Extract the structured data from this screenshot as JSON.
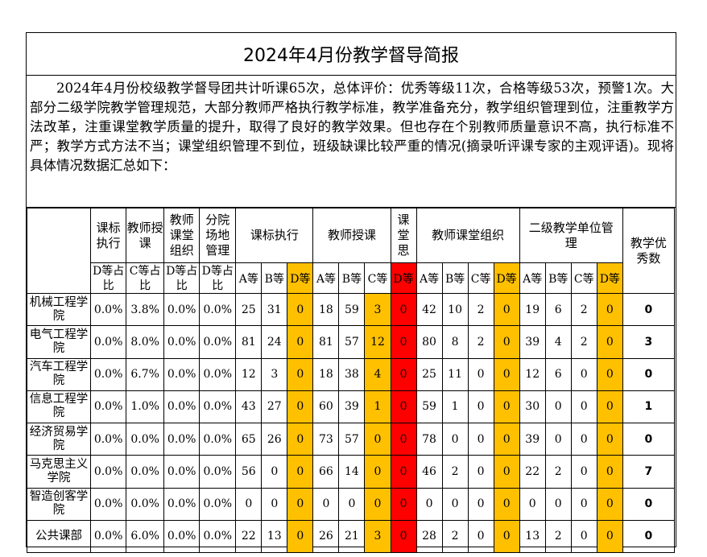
{
  "report": {
    "title": "2024年4月份教学督导简报",
    "summary": "2024年4月份校级教学督导团共计听课65次，总体评价：优秀等级11次，合格等级53次，预警1次。大部分二级学院教学管理规范，大部分教师严格执行教学标准，教学准备充分，教学组织管理到位，注重教学方法改革，注重课堂教学质量的提升，取得了良好的教学效果。但也存在个别教师质量意识不高，执行标准不严；教学方式方法不当；课堂组织管理不到位，班级缺课比较严重的情况(摘录听评课专家的主观评语)。现将具体情况数据汇总如下："
  },
  "table": {
    "header1": {
      "c1": "课标执行",
      "c2": "教师授课",
      "c3": "教师课堂组织",
      "c4": "分院场地管理",
      "g1": "课标执行",
      "g2": "教师授课",
      "g3": "课堂思",
      "g4": "教师课堂组织",
      "g5": "二级教学单位管理",
      "excellent": "教学优秀数"
    },
    "header2": {
      "c1": "D等占比",
      "c2": "C等占比",
      "c3": "D等占比",
      "c4": "D等占比",
      "grades": [
        "A等",
        "B等",
        "D等",
        "A等",
        "B等",
        "C等",
        "D等",
        "A等",
        "B等",
        "C等",
        "D等",
        "A等",
        "B等",
        "C等",
        "D等"
      ]
    },
    "rows": [
      {
        "dept": "机械工程学院",
        "p": [
          "0.0%",
          "3.8%",
          "0.0%",
          "0.0%"
        ],
        "v": [
          25,
          31,
          0,
          18,
          59,
          3,
          0,
          42,
          10,
          2,
          0,
          19,
          6,
          2,
          0
        ],
        "excellent": 0
      },
      {
        "dept": "电气工程学院",
        "p": [
          "0.0%",
          "8.0%",
          "0.0%",
          "0.0%"
        ],
        "v": [
          81,
          24,
          0,
          81,
          57,
          12,
          0,
          80,
          8,
          2,
          0,
          39,
          4,
          2,
          0
        ],
        "excellent": 3
      },
      {
        "dept": "汽车工程学院",
        "p": [
          "0.0%",
          "6.7%",
          "0.0%",
          "0.0%"
        ],
        "v": [
          12,
          3,
          0,
          18,
          38,
          4,
          0,
          25,
          11,
          0,
          0,
          12,
          6,
          0,
          0
        ],
        "excellent": 0
      },
      {
        "dept": "信息工程学院",
        "p": [
          "0.0%",
          "1.0%",
          "0.0%",
          "0.0%"
        ],
        "v": [
          43,
          27,
          0,
          60,
          39,
          1,
          0,
          59,
          1,
          0,
          0,
          30,
          0,
          0,
          0
        ],
        "excellent": 1
      },
      {
        "dept": "经济贸易学院",
        "p": [
          "0.0%",
          "0.0%",
          "0.0%",
          "0.0%"
        ],
        "v": [
          65,
          26,
          0,
          73,
          57,
          0,
          0,
          78,
          0,
          0,
          0,
          39,
          0,
          0,
          0
        ],
        "excellent": 0
      },
      {
        "dept": "马克思主义学院",
        "p": [
          "0.0%",
          "0.0%",
          "0.0%",
          "0.0%"
        ],
        "v": [
          56,
          0,
          0,
          66,
          14,
          0,
          0,
          46,
          2,
          0,
          0,
          22,
          2,
          0,
          0
        ],
        "excellent": 7
      },
      {
        "dept": "智造创客学院",
        "p": [
          "0.0%",
          "0.0%",
          "0.0%",
          "0.0%"
        ],
        "v": [
          0,
          0,
          0,
          0,
          0,
          0,
          0,
          0,
          0,
          0,
          0,
          0,
          0,
          0,
          0
        ],
        "excellent": 0
      },
      {
        "dept": "公共课部",
        "p": [
          "0.0%",
          "6.0%",
          "0.0%",
          "0.0%"
        ],
        "v": [
          22,
          13,
          0,
          26,
          21,
          3,
          0,
          28,
          2,
          0,
          0,
          13,
          2,
          0,
          0
        ],
        "excellent": 0
      }
    ]
  },
  "colors": {
    "highlight_yellow": "#ffc000",
    "highlight_red": "#ff0000"
  }
}
